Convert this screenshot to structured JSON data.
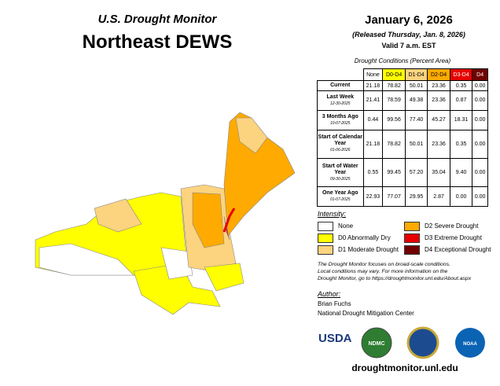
{
  "header": {
    "kicker": "U.S. Drought Monitor",
    "title": "Northeast DEWS"
  },
  "dates": {
    "date": "January 6, 2026",
    "released": "(Released Thursday, Jan. 8, 2026)",
    "valid": "Valid 7 a.m. EST"
  },
  "table": {
    "caption": "Drought Conditions (Percent Area)",
    "columns": [
      {
        "label": "None",
        "color": "#ffffff",
        "text": "#000"
      },
      {
        "label": "D0-D4",
        "color": "#ffff00",
        "text": "#000"
      },
      {
        "label": "D1-D4",
        "color": "#fcd37f",
        "text": "#000"
      },
      {
        "label": "D2-D4",
        "color": "#ffaa00",
        "text": "#000"
      },
      {
        "label": "D3-D4",
        "color": "#e60000",
        "text": "#fff"
      },
      {
        "label": "D4",
        "color": "#730000",
        "text": "#fff"
      }
    ],
    "rows": [
      {
        "label": "Current",
        "date": null,
        "cells": [
          "21.18",
          "78.82",
          "50.01",
          "23.36",
          "0.35",
          "0.00"
        ]
      },
      {
        "label": "Last Week",
        "date": "12-30-2025",
        "cells": [
          "21.41",
          "78.59",
          "49.38",
          "23.36",
          "0.87",
          "0.00"
        ]
      },
      {
        "label": "3 Months Ago",
        "date": "10-07-2025",
        "cells": [
          "0.44",
          "99.56",
          "77.40",
          "45.27",
          "18.31",
          "0.00"
        ]
      },
      {
        "label": "Start of Calendar Year",
        "date": "01-06-2026",
        "cells": [
          "21.18",
          "78.82",
          "50.01",
          "23.36",
          "0.35",
          "0.00"
        ]
      },
      {
        "label": "Start of Water Year",
        "date": "09-30-2025",
        "cells": [
          "0.55",
          "99.45",
          "57.20",
          "35.04",
          "9.40",
          "0.00"
        ]
      },
      {
        "label": "One Year Ago",
        "date": "01-07-2025",
        "cells": [
          "22.93",
          "77.07",
          "29.95",
          "2.87",
          "0.00",
          "0.00"
        ]
      }
    ]
  },
  "legend": {
    "title": "Intensity:",
    "items": [
      {
        "label": "None",
        "color": "#ffffff"
      },
      {
        "label": "D0 Abnormally Dry",
        "color": "#ffff00"
      },
      {
        "label": "D1 Moderate Drought",
        "color": "#fcd37f"
      },
      {
        "label": "D2 Severe Drought",
        "color": "#ffaa00"
      },
      {
        "label": "D3 Extreme Drought",
        "color": "#e60000"
      },
      {
        "label": "D4 Exceptional Drought",
        "color": "#730000"
      }
    ]
  },
  "notes": [
    "The Drought Monitor focuses on broad-scale conditions.",
    "Local conditions may vary. For more information on the",
    "Drought Monitor, go to https://droughtmonitor.unl.edu/About.aspx"
  ],
  "author": {
    "title": "Author:",
    "name": "Brian Fuchs",
    "org": "National Drought Mitigation Center"
  },
  "logos": [
    "USDA",
    "NDMC",
    "NOAA"
  ],
  "url": "droughtmonitor.unl.edu"
}
